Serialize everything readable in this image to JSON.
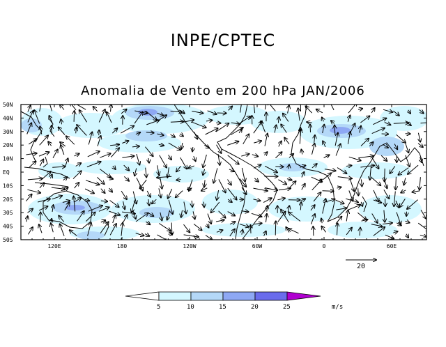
{
  "header": {
    "organization": "INPE/CPTEC",
    "title": "Anomalia de Vento em 200 hPa JAN/2006"
  },
  "map": {
    "lat_labels": [
      "50N",
      "40N",
      "30N",
      "20N",
      "10N",
      "EQ",
      "10S",
      "20S",
      "30S",
      "40S",
      "50S"
    ],
    "lon_labels": [
      "120E",
      "180",
      "120W",
      "60W",
      "0",
      "60E"
    ]
  },
  "reference_vector": {
    "label": "20"
  },
  "colorbar": {
    "unit": "m/s",
    "ticks": [
      "5",
      "10",
      "15",
      "20",
      "25"
    ],
    "colors": [
      "#ffffff",
      "#d4f7ff",
      "#b4d8f8",
      "#8ea8f4",
      "#6a6cec",
      "#b000d0"
    ]
  },
  "colors": {
    "shade_light": "#d4f7ff",
    "shade_mid": "#b4d8f8",
    "shade_strong": "#8ea8f4",
    "land": "#000000"
  }
}
